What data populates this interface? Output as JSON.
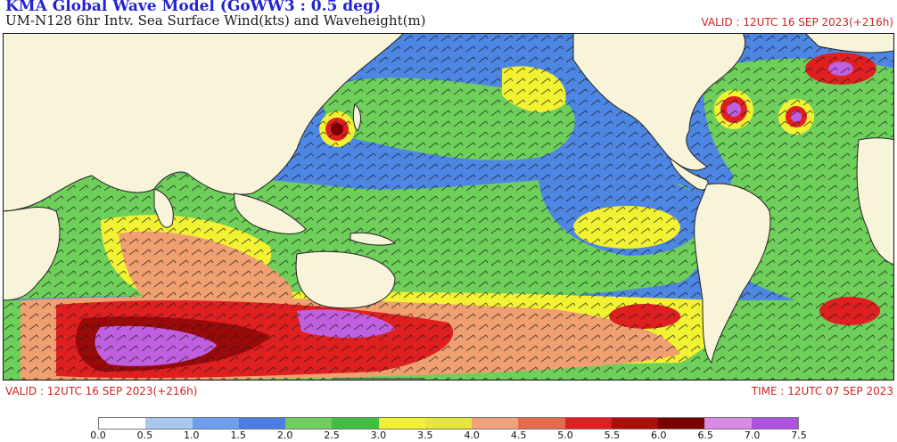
{
  "header": {
    "title": "KMA  Global Wave Model (GoWW3 : 0.5 deg)",
    "subtitle": "UM-N128  6hr Intv. Sea Surface Wind(kts) and Waveheight(m)",
    "valid_top": "VALID : 12UTC 16 SEP 2023(+216h)"
  },
  "footer": {
    "valid": "VALID : 12UTC 16 SEP 2023(+216h)",
    "time": "TIME : 12UTC 07 SEP 2023"
  },
  "legend": {
    "labels": [
      "0.0",
      "0.5",
      "1.0",
      "1.5",
      "2.0",
      "2.5",
      "3.0",
      "3.5",
      "4.0",
      "4.5",
      "5.0",
      "5.5",
      "6.0",
      "6.5",
      "7.0",
      "7.5"
    ],
    "colors": [
      "#ffffff",
      "#a8c8f0",
      "#6e9ef0",
      "#4a7ee6",
      "#6ecf5a",
      "#3fbf3f",
      "#f2f232",
      "#e6e63a",
      "#f2a27a",
      "#e86a4a",
      "#e02020",
      "#b00a0a",
      "#7a0000",
      "#d88ae6",
      "#b050e0",
      "#8a22d0"
    ]
  },
  "map": {
    "colors": {
      "land": "#f8f4da",
      "ocean_blue": "#4e86e4",
      "light_blue": "#a8c8f0",
      "green": "#6ecf5a",
      "yellow": "#f2f232",
      "orange": "#f0a070",
      "red": "#e02020",
      "darkred": "#9a0a0a",
      "purple": "#c060e0"
    }
  }
}
